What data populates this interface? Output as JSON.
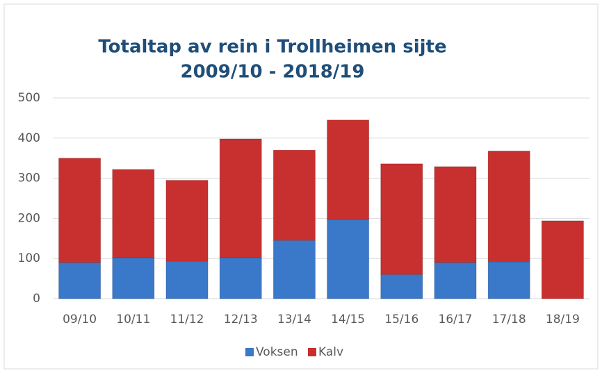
{
  "chart_data": {
    "type": "stacked_bar",
    "title": [
      "Totaltap av rein i Trollheimen sijte",
      "2009/10 - 2018/19"
    ],
    "categories": [
      "09/10",
      "10/11",
      "11/12",
      "12/13",
      "13/14",
      "14/15",
      "15/16",
      "16/17",
      "17/18",
      "18/19"
    ],
    "series": [
      {
        "name": "Voksen",
        "color": "#3a78c9",
        "values": [
          90,
          102,
          93,
          102,
          145,
          197,
          60,
          90,
          92,
          0
        ]
      },
      {
        "name": "Kalv",
        "color": "#c8302f",
        "values": [
          260,
          220,
          202,
          296,
          225,
          248,
          276,
          239,
          276,
          194
        ]
      }
    ],
    "ylim": [
      0,
      500
    ],
    "yticks": [
      0,
      100,
      200,
      300,
      400,
      500
    ],
    "grid": true,
    "legend": "bottom"
  }
}
